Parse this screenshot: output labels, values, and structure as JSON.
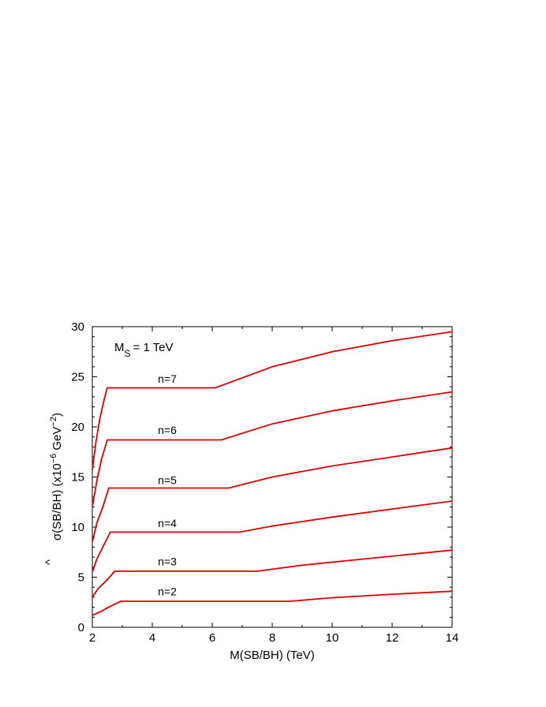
{
  "chart_data": {
    "type": "line",
    "annotation": {
      "main": "M",
      "sub": "S",
      "rest": "= 1 TeV"
    },
    "xlabel": "M(SB/BH)   (TeV)",
    "ylabel": {
      "hat": "^",
      "main": "σ(SB/BH)   (x10",
      "exp1": "−6",
      "mid": " GeV",
      "exp2": "−2",
      "end": ")"
    },
    "xlim": [
      2,
      14
    ],
    "ylim": [
      0,
      30
    ],
    "xticks": [
      2,
      4,
      6,
      8,
      10,
      12,
      14
    ],
    "yticks": [
      0,
      5,
      10,
      15,
      20,
      25,
      30
    ],
    "line_color": "#e00000",
    "series": [
      {
        "name": "n=2",
        "label_pos": [
          4.5,
          3.2
        ],
        "x": [
          2.0,
          2.3,
          2.6,
          2.95,
          8.6,
          10,
          12,
          14
        ],
        "y": [
          1.2,
          1.6,
          2.1,
          2.6,
          2.6,
          2.95,
          3.3,
          3.6
        ]
      },
      {
        "name": "n=3",
        "label_pos": [
          4.5,
          6.2
        ],
        "x": [
          2.0,
          2.2,
          2.45,
          2.75,
          7.5,
          9,
          11,
          14
        ],
        "y": [
          3.0,
          3.9,
          4.6,
          5.6,
          5.6,
          6.2,
          6.8,
          7.7
        ]
      },
      {
        "name": "n=4",
        "label_pos": [
          4.5,
          10.0
        ],
        "x": [
          2.0,
          2.15,
          2.35,
          2.6,
          6.9,
          8,
          10,
          12,
          14
        ],
        "y": [
          5.5,
          6.8,
          8.0,
          9.5,
          9.5,
          10.1,
          11.0,
          11.8,
          12.6
        ]
      },
      {
        "name": "n=5",
        "label_pos": [
          4.5,
          14.3
        ],
        "x": [
          2.0,
          2.15,
          2.35,
          2.55,
          6.55,
          8,
          10,
          12,
          14
        ],
        "y": [
          8.5,
          10.4,
          12.0,
          13.9,
          13.9,
          15.0,
          16.1,
          17.0,
          17.9
        ]
      },
      {
        "name": "n=6",
        "label_pos": [
          4.5,
          19.3
        ],
        "x": [
          2.0,
          2.15,
          2.3,
          2.5,
          6.3,
          8,
          10,
          12,
          14
        ],
        "y": [
          12.0,
          14.6,
          16.7,
          18.7,
          18.7,
          20.3,
          21.6,
          22.6,
          23.5
        ]
      },
      {
        "name": "n=7",
        "label_pos": [
          4.5,
          24.4
        ],
        "x": [
          2.0,
          2.12,
          2.25,
          2.4,
          2.5,
          6.1,
          8,
          10,
          12,
          14
        ],
        "y": [
          15.7,
          18.5,
          20.8,
          22.8,
          23.9,
          23.9,
          26.0,
          27.5,
          28.6,
          29.5
        ]
      }
    ]
  }
}
